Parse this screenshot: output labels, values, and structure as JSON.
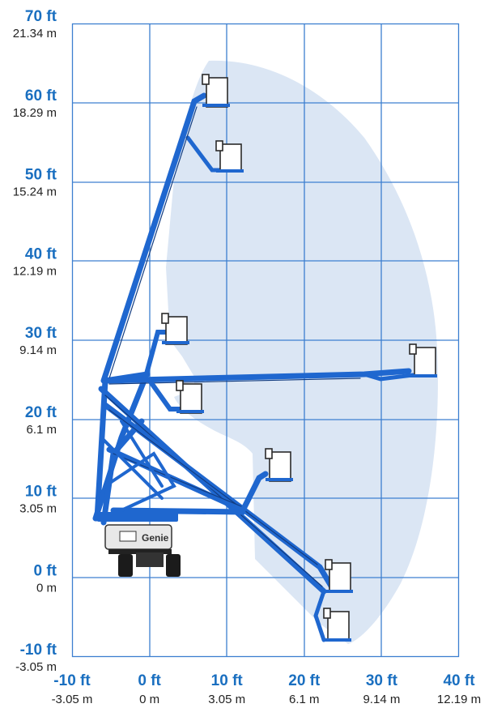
{
  "figure": {
    "x_axis": {
      "unit_ft": "ft",
      "unit_m": "m",
      "ticks": [
        {
          "ft": "-10 ft",
          "m": "-3.05 m"
        },
        {
          "ft": "0 ft",
          "m": "0 m"
        },
        {
          "ft": "10 ft",
          "m": "3.05 m"
        },
        {
          "ft": "20 ft",
          "m": "6.1 m"
        },
        {
          "ft": "30 ft",
          "m": "9.14 m"
        },
        {
          "ft": "40 ft",
          "m": "12.19 m"
        }
      ]
    },
    "y_axis": {
      "ticks": [
        {
          "ft": "70 ft",
          "m": "21.34 m"
        },
        {
          "ft": "60 ft",
          "m": "18.29 m"
        },
        {
          "ft": "50 ft",
          "m": "15.24 m"
        },
        {
          "ft": "40 ft",
          "m": "12.19 m"
        },
        {
          "ft": "30 ft",
          "m": "9.14 m"
        },
        {
          "ft": "20 ft",
          "m": "6.1 m"
        },
        {
          "ft": "10 ft",
          "m": "3.05 m"
        },
        {
          "ft": "0 ft",
          "m": "0 m"
        },
        {
          "ft": "-10 ft",
          "m": "-3.05 m"
        }
      ]
    },
    "x_range_ft": [
      -10,
      40
    ],
    "y_range_ft": [
      -10,
      70
    ],
    "machine_brand": "Genie",
    "colors": {
      "boom": "#1f67cf",
      "envelope": "#dbe6f4",
      "grid": "#3d7fd0",
      "label_ft": "#1a6fc0"
    }
  }
}
